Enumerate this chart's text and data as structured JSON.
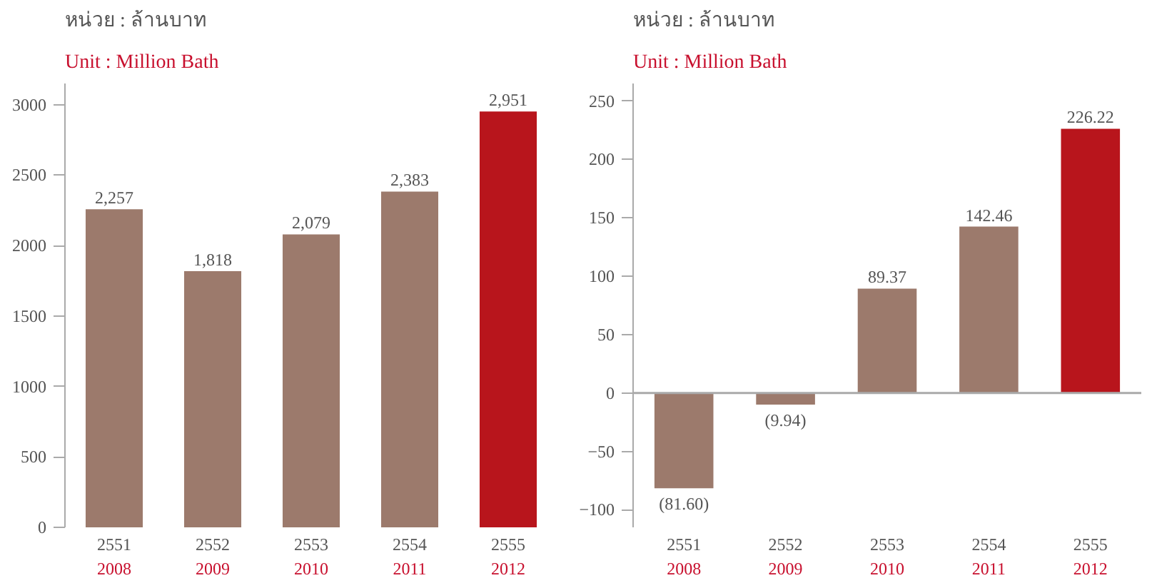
{
  "chart_data": [
    {
      "type": "bar",
      "title": "หน่วย : ล้านบาท",
      "subtitle": "Unit : Million Bath",
      "categories": [
        "2551\n2008",
        "2552\n2009",
        "2553\n2010",
        "2554\n2011",
        "2555\n2012"
      ],
      "values": [
        2257,
        1818,
        2079,
        2383,
        2951
      ],
      "colors": [
        "#9c7a6c",
        "#9c7a6c",
        "#9c7a6c",
        "#9c7a6c",
        "#b8151c"
      ],
      "value_labels": [
        "2,257",
        "1,818",
        "2,079",
        "2,383",
        "2,951"
      ],
      "ylim": [
        0,
        3150
      ],
      "yticks": [
        0,
        500,
        1000,
        1500,
        2000,
        2500,
        3000
      ],
      "grid": false
    },
    {
      "type": "bar",
      "title": "หน่วย : ล้านบาท",
      "subtitle": "Unit : Million Bath",
      "categories": [
        "2551\n2008",
        "2552\n2009",
        "2553\n2010",
        "2554\n2011",
        "2555\n2012"
      ],
      "values": [
        -81.6,
        -9.94,
        89.37,
        142.46,
        226.22
      ],
      "colors": [
        "#9c7a6c",
        "#9c7a6c",
        "#9c7a6c",
        "#9c7a6c",
        "#b8151c"
      ],
      "value_labels": [
        "(81.60)",
        "(9.94)",
        "89.37",
        "142.46",
        "226.22"
      ],
      "ylim": [
        -115,
        265
      ],
      "yticks": [
        -100,
        -50,
        0,
        50,
        100,
        150,
        200,
        250
      ],
      "grid": false,
      "ref_lines": [
        {
          "axis": "y",
          "value": 0,
          "color": "#aaaaaa"
        }
      ]
    }
  ]
}
